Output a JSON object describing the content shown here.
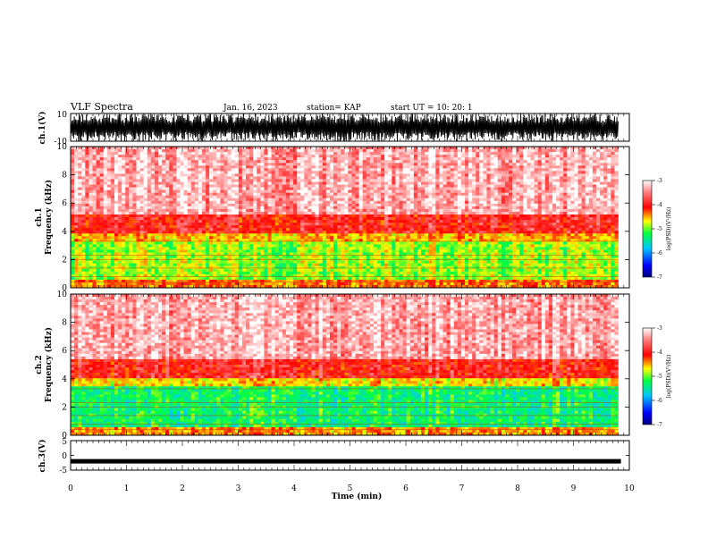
{
  "header": {
    "title": "VLF Spectra",
    "date": "Jan. 16, 2023",
    "station": "station= KAP",
    "start": "start  UT  =   10: 20: 1"
  },
  "chart_data": [
    {
      "type": "line",
      "name": "ch1-waveform",
      "ylabel": "ch.1(V)",
      "yticks": [
        "10",
        "-10"
      ],
      "ylim": [
        -10,
        10
      ],
      "xlim": [
        0,
        10
      ],
      "description_values": "dense saturated waveform spanning -10 to 10 V over 0 to 9.8 min"
    },
    {
      "type": "heatmap",
      "name": "ch1-spectrogram",
      "ylabel": "ch.1\nFrequency  (kHz)",
      "ylabel_line1": "ch.1",
      "ylabel_line2": "Frequency  (kHz)",
      "ylim": [
        0,
        10
      ],
      "yticks": [
        "0",
        "2",
        "4",
        "6",
        "8",
        "10"
      ],
      "xlim": [
        0,
        10
      ],
      "data_end_min": 9.8,
      "bands_khz": [
        {
          "from": 0.0,
          "to": 0.6,
          "level": -4.3
        },
        {
          "from": 0.6,
          "to": 3.2,
          "level": -4.9
        },
        {
          "from": 3.2,
          "to": 3.8,
          "level": -4.5
        },
        {
          "from": 3.8,
          "to": 5.2,
          "level": -3.9
        },
        {
          "from": 5.2,
          "to": 10.0,
          "level": -3.3
        }
      ]
    },
    {
      "type": "heatmap",
      "name": "ch2-spectrogram",
      "ylabel_line1": "ch.2",
      "ylabel_line2": "Frequency  (kHz)",
      "ylim": [
        0,
        10
      ],
      "yticks": [
        "0",
        "2",
        "4",
        "6",
        "8",
        "10"
      ],
      "xlim": [
        0,
        10
      ],
      "data_end_min": 9.8,
      "bands_khz": [
        {
          "from": 0.0,
          "to": 0.6,
          "level": -4.4
        },
        {
          "from": 0.6,
          "to": 3.4,
          "level": -5.3
        },
        {
          "from": 3.4,
          "to": 4.0,
          "level": -4.6
        },
        {
          "from": 4.0,
          "to": 5.4,
          "level": -3.9
        },
        {
          "from": 5.4,
          "to": 10.0,
          "level": -3.3
        }
      ]
    },
    {
      "type": "line",
      "name": "ch3-waveform",
      "ylabel": "ch.3(V)",
      "yticks": [
        "5",
        "0",
        "-5"
      ],
      "ylim": [
        -5,
        5
      ],
      "xlim": [
        0,
        10
      ],
      "constant_level": -2.0
    }
  ],
  "xaxis": {
    "label": "Time  (min)",
    "ticks": [
      "0",
      "1",
      "2",
      "3",
      "4",
      "5",
      "6",
      "7",
      "8",
      "9",
      "10"
    ]
  },
  "colorbars": [
    {
      "label": "log(PSD)(V²/Hz)",
      "ticks": [
        "-3",
        "-4",
        "-5",
        "-6",
        "-7"
      ],
      "range": [
        -7,
        -3
      ]
    },
    {
      "label": "log(PSD)(V²/Hz)",
      "ticks": [
        "-3",
        "-4",
        "-5",
        "-6",
        "-7"
      ],
      "range": [
        -7,
        -3
      ]
    }
  ],
  "colors": {
    "high": "#ff0000",
    "mid": "#ffff00",
    "low": "#00ff00",
    "lower": "#00c0ff",
    "lowest": "#000080"
  }
}
